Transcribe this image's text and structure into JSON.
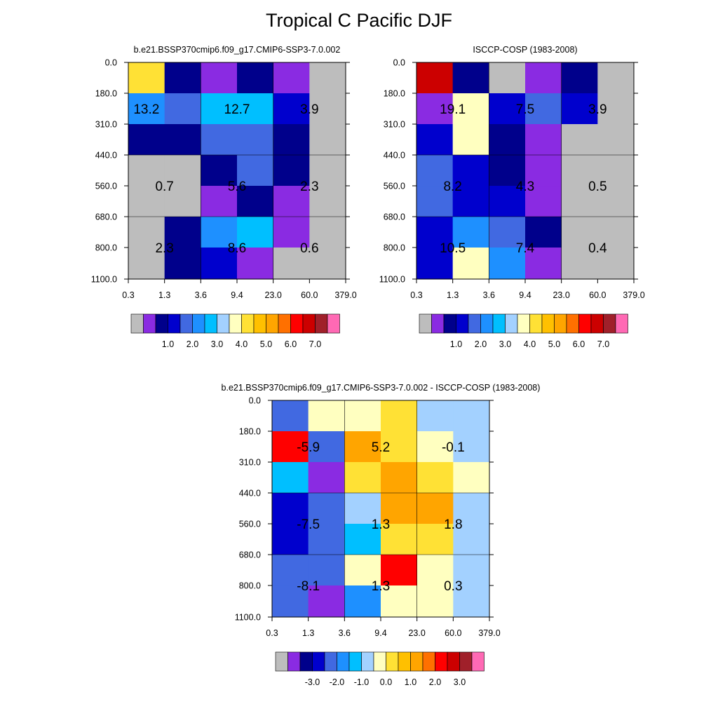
{
  "title": "Tropical C Pacific DJF",
  "colors": {
    "abs": [
      "#bdbdbd",
      "#8a2be2",
      "#00008b",
      "#0000cd",
      "#4169e1",
      "#1e90ff",
      "#00bfff",
      "#a3d1ff",
      "#ffffc0",
      "#ffe135",
      "#ffc000",
      "#ffa500",
      "#ff7000",
      "#ff0000",
      "#cc0000",
      "#a0202a",
      "#ff69b4"
    ],
    "diff": [
      "#bdbdbd",
      "#8a2be2",
      "#00008b",
      "#0000cd",
      "#4169e1",
      "#1e90ff",
      "#00bfff",
      "#a3d1ff",
      "#ffffc0",
      "#ffe135",
      "#ffc000",
      "#ffa500",
      "#ff7000",
      "#ff0000",
      "#cc0000",
      "#a0202a",
      "#ff69b4"
    ]
  },
  "chart_data": [
    {
      "type": "heatmap",
      "title": "b.e21.BSSP370cmip6.f09_g17.CMIP6-SSP3-7.0.002",
      "x_tick_labels": [
        "0.3",
        "1.3",
        "3.6",
        "9.4",
        "23.0",
        "60.0",
        "379.0"
      ],
      "y_tick_labels": [
        "0.0",
        "180.0",
        "310.0",
        "440.0",
        "560.0",
        "680.0",
        "800.0",
        "1100.0"
      ],
      "cell_color_index": [
        [
          9,
          2,
          1,
          2,
          1,
          0
        ],
        [
          5,
          4,
          6,
          6,
          3,
          0
        ],
        [
          2,
          2,
          4,
          4,
          2,
          0
        ],
        [
          0,
          0,
          2,
          4,
          2,
          0
        ],
        [
          0,
          0,
          1,
          2,
          1,
          0
        ],
        [
          0,
          2,
          5,
          6,
          1,
          0
        ],
        [
          0,
          2,
          3,
          1,
          0,
          0
        ]
      ],
      "grid_x_index": [
        2,
        4
      ],
      "grid_y_index": [
        3,
        5
      ],
      "labels": [
        {
          "text": "13.2",
          "col": 0,
          "row": 1.5
        },
        {
          "text": "12.7",
          "col": 2.5,
          "row": 1.5
        },
        {
          "text": "3.9",
          "col": 4.5,
          "row": 1.5
        },
        {
          "text": "0.7",
          "col": 0.5,
          "row": 4
        },
        {
          "text": "5.6",
          "col": 2.5,
          "row": 4
        },
        {
          "text": "2.3",
          "col": 4.5,
          "row": 4
        },
        {
          "text": "2.3",
          "col": 0.5,
          "row": 6
        },
        {
          "text": "8.6",
          "col": 2.5,
          "row": 6
        },
        {
          "text": "0.6",
          "col": 4.5,
          "row": 6
        }
      ],
      "colorbar_tick_labels": [
        "1.0",
        "2.0",
        "3.0",
        "4.0",
        "5.0",
        "6.0",
        "7.0"
      ],
      "palette": "abs"
    },
    {
      "type": "heatmap",
      "title": "ISCCP-COSP (1983-2008)",
      "x_tick_labels": [
        "0.3",
        "1.3",
        "3.6",
        "9.4",
        "23.0",
        "60.0",
        "379.0"
      ],
      "y_tick_labels": [
        "0.0",
        "180.0",
        "310.0",
        "440.0",
        "560.0",
        "680.0",
        "800.0",
        "1100.0"
      ],
      "cell_color_index": [
        [
          14,
          2,
          0,
          1,
          2,
          0
        ],
        [
          1,
          8,
          3,
          4,
          3,
          0
        ],
        [
          3,
          8,
          2,
          1,
          0,
          0
        ],
        [
          4,
          3,
          2,
          1,
          0,
          0
        ],
        [
          4,
          3,
          3,
          1,
          0,
          0
        ],
        [
          3,
          5,
          4,
          2,
          0,
          0
        ],
        [
          3,
          8,
          5,
          1,
          0,
          0
        ]
      ],
      "grid_x_index": [
        2,
        4
      ],
      "grid_y_index": [
        3,
        5
      ],
      "labels": [
        {
          "text": "19.1",
          "col": 0.5,
          "row": 1.5
        },
        {
          "text": "7.5",
          "col": 2.5,
          "row": 1.5
        },
        {
          "text": "3.9",
          "col": 4.5,
          "row": 1.5
        },
        {
          "text": "8.2",
          "col": 0.5,
          "row": 4
        },
        {
          "text": "4.3",
          "col": 2.5,
          "row": 4
        },
        {
          "text": "0.5",
          "col": 4.5,
          "row": 4
        },
        {
          "text": "10.5",
          "col": 0.5,
          "row": 6
        },
        {
          "text": "7.4",
          "col": 2.5,
          "row": 6
        },
        {
          "text": "0.4",
          "col": 4.5,
          "row": 6
        }
      ],
      "colorbar_tick_labels": [
        "1.0",
        "2.0",
        "3.0",
        "4.0",
        "5.0",
        "6.0",
        "7.0"
      ],
      "palette": "abs"
    },
    {
      "type": "heatmap",
      "title": "b.e21.BSSP370cmip6.f09_g17.CMIP6-SSP3-7.0.002 - ISCCP-COSP (1983-2008)",
      "x_tick_labels": [
        "0.3",
        "1.3",
        "3.6",
        "9.4",
        "23.0",
        "60.0",
        "379.0"
      ],
      "y_tick_labels": [
        "0.0",
        "180.0",
        "310.0",
        "440.0",
        "560.0",
        "680.0",
        "800.0",
        "1100.0"
      ],
      "cell_color_index": [
        [
          4,
          8,
          8,
          9,
          7,
          7
        ],
        [
          13,
          4,
          11,
          9,
          8,
          7
        ],
        [
          6,
          1,
          9,
          11,
          9,
          8
        ],
        [
          3,
          4,
          7,
          11,
          11,
          7
        ],
        [
          3,
          4,
          6,
          9,
          9,
          7
        ],
        [
          4,
          4,
          8,
          13,
          8,
          7
        ],
        [
          4,
          1,
          5,
          8,
          8,
          7
        ]
      ],
      "grid_x_index": [
        2,
        4
      ],
      "grid_y_index": [
        3,
        5
      ],
      "labels": [
        {
          "text": "-5.9",
          "col": 0.5,
          "row": 1.5
        },
        {
          "text": "5.2",
          "col": 2.5,
          "row": 1.5
        },
        {
          "text": "-0.1",
          "col": 4.5,
          "row": 1.5
        },
        {
          "text": "-7.5",
          "col": 0.5,
          "row": 4
        },
        {
          "text": "1.3",
          "col": 2.5,
          "row": 4
        },
        {
          "text": "1.8",
          "col": 4.5,
          "row": 4
        },
        {
          "text": "-8.1",
          "col": 0.5,
          "row": 6
        },
        {
          "text": "1.3",
          "col": 2.5,
          "row": 6
        },
        {
          "text": "0.3",
          "col": 4.5,
          "row": 6
        }
      ],
      "colorbar_tick_labels": [
        "-3.0",
        "-2.0",
        "-1.0",
        "0.0",
        "1.0",
        "2.0",
        "3.0"
      ],
      "palette": "diff"
    }
  ]
}
